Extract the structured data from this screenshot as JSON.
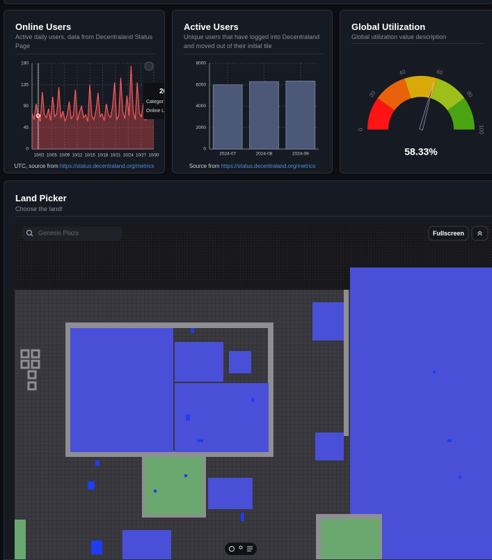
{
  "cards": [
    {
      "title": "Online Users",
      "subtitle": "Active daily users, data from Decentraland Status Page",
      "footer": "UTC, source from",
      "link": "https://status.decentraland.org/metrics",
      "chart": {
        "type": "line",
        "color": "#ff5a5a",
        "values": [
          75,
          62,
          95,
          70,
          58,
          120,
          72,
          66,
          85,
          60,
          110,
          68,
          74,
          130,
          65,
          80,
          58,
          72,
          100,
          64,
          70,
          125,
          60,
          78,
          90,
          66,
          72,
          58,
          135,
          70,
          62,
          82,
          118,
          68,
          74,
          60,
          95,
          72,
          66,
          88,
          140,
          62,
          70,
          150,
          78,
          64,
          112,
          70,
          175,
          80,
          62,
          140,
          75,
          68,
          96,
          60,
          72,
          85,
          66,
          74
        ],
        "xticks": [
          "10/02",
          "10/05",
          "10/09",
          "10/12",
          "10/15",
          "10/18",
          "10/21",
          "10/24",
          "10/27",
          "10/30"
        ],
        "ylim": [
          0,
          180
        ],
        "yticks": [
          0,
          45,
          90,
          135,
          180
        ],
        "grid": true
      },
      "tooltip": {
        "title": "20",
        "lines": [
          "Categor",
          "Online L"
        ]
      }
    },
    {
      "title": "Active Users",
      "subtitle": "Unique users that have logged into Decentraland and moved out of their initial tile",
      "footer": "Source from",
      "link": "https://status.decentraland.org/metrics",
      "chart": {
        "type": "bar",
        "color": "#4b5878",
        "categories": [
          "2024-07",
          "2024-08",
          "2024-09"
        ],
        "values": [
          6000,
          6300,
          6350
        ],
        "ylim": [
          0,
          8000
        ],
        "yticks": [
          0,
          2000,
          4000,
          6000,
          8000
        ],
        "grid": true
      }
    },
    {
      "title": "Global Utilization",
      "subtitle": "Global utilization value description",
      "chart": {
        "type": "gauge",
        "value": 58.33,
        "value_label": "58.33%",
        "ylim": [
          0,
          100
        ],
        "yticks": [
          0,
          20,
          40,
          60,
          80,
          100
        ],
        "colors": [
          "#ff1414",
          "#e8620a",
          "#d9a90a",
          "#9cbf1a",
          "#4aa313"
        ]
      }
    }
  ],
  "land": {
    "title": "Land Picker",
    "subtitle": "Choose the land!",
    "search_placeholder": "Genesis Plaza",
    "fullscreen": "Fullscreen"
  }
}
